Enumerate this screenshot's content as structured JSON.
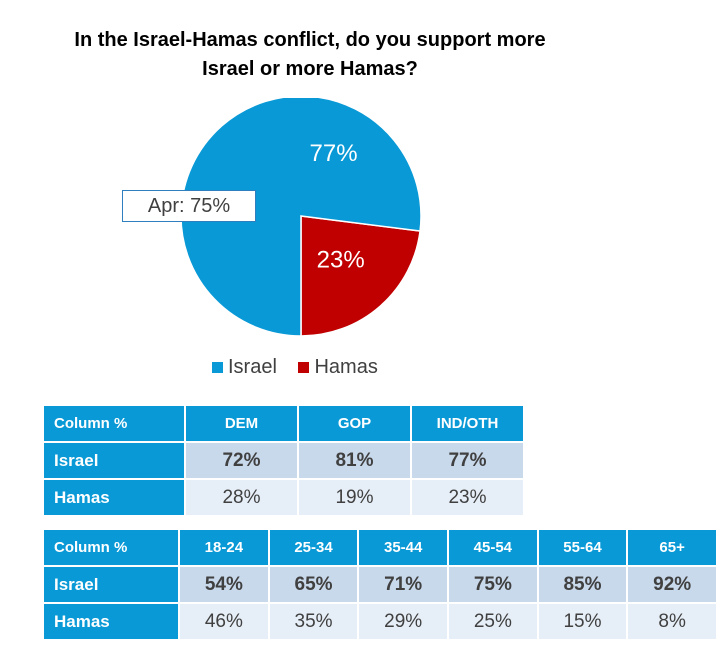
{
  "chart_data": {
    "type": "pie",
    "title_lines": [
      "In the Israel-Hamas conflict, do you support more",
      "Israel or more Hamas?"
    ],
    "slices": [
      {
        "name": "Israel",
        "value": 77,
        "label": "77%",
        "color": "#0899d6"
      },
      {
        "name": "Hamas",
        "value": 23,
        "label": "23%",
        "color": "#c00000"
      }
    ],
    "annotation": "Apr: 75%",
    "legend": [
      "Israel",
      "Hamas"
    ]
  },
  "table_party": {
    "headers": [
      "Column %",
      "DEM",
      "GOP",
      "IND/OTH"
    ],
    "rows": [
      {
        "label": "Israel",
        "values": [
          "72%",
          "81%",
          "77%"
        ]
      },
      {
        "label": "Hamas",
        "values": [
          "28%",
          "19%",
          "23%"
        ]
      }
    ]
  },
  "table_age": {
    "headers": [
      "Column %",
      "18-24",
      "25-34",
      "35-44",
      "45-54",
      "55-64",
      "65+"
    ],
    "rows": [
      {
        "label": "Israel",
        "values": [
          "54%",
          "65%",
          "71%",
          "75%",
          "85%",
          "92%"
        ]
      },
      {
        "label": "Hamas",
        "values": [
          "46%",
          "35%",
          "29%",
          "25%",
          "15%",
          "8%"
        ]
      }
    ]
  }
}
